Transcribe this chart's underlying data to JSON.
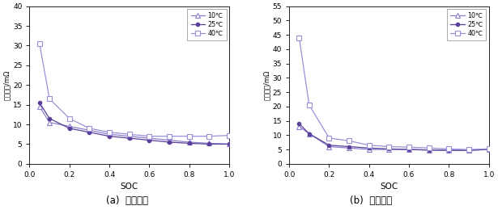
{
  "soc": [
    0.05,
    0.1,
    0.2,
    0.3,
    0.4,
    0.5,
    0.6,
    0.7,
    0.8,
    0.9,
    1.0
  ],
  "ohm_10": [
    14.5,
    10.5,
    9.5,
    8.5,
    7.5,
    7.0,
    6.5,
    6.0,
    5.5,
    5.2,
    5.0
  ],
  "ohm_25": [
    15.5,
    11.5,
    9.0,
    8.0,
    7.0,
    6.5,
    6.0,
    5.5,
    5.2,
    5.0,
    5.0
  ],
  "ohm_40": [
    30.5,
    16.5,
    11.5,
    9.0,
    8.0,
    7.5,
    7.0,
    7.0,
    7.0,
    7.0,
    7.2
  ],
  "pol_10": [
    13.0,
    10.5,
    6.0,
    5.5,
    5.0,
    5.0,
    5.0,
    4.8,
    4.7,
    4.7,
    5.0
  ],
  "pol_25": [
    14.0,
    10.5,
    6.5,
    6.0,
    5.5,
    5.2,
    5.0,
    4.8,
    4.7,
    4.7,
    5.0
  ],
  "pol_40": [
    44.0,
    20.5,
    9.0,
    8.0,
    6.5,
    6.0,
    5.8,
    5.5,
    5.2,
    5.0,
    5.2
  ],
  "c10": "#8B7FCC",
  "c25": "#5B3F9A",
  "c40": "#9B8FD8",
  "ylabel_left": "欧姆内阻/mΩ",
  "ylabel_right": "极化内阻/mΩ",
  "xlabel": "SOC",
  "label_10": "10℃",
  "label_25": "25℃",
  "label_40": "40℃",
  "caption_a": "(a)  欧姆内阻",
  "caption_b": "(b)  极化内阻",
  "ylim_left": [
    0,
    40
  ],
  "ylim_right": [
    0,
    55
  ],
  "yticks_left": [
    0,
    5,
    10,
    15,
    20,
    25,
    30,
    35,
    40
  ],
  "yticks_right": [
    0,
    5,
    10,
    15,
    20,
    25,
    30,
    35,
    40,
    45,
    50,
    55
  ],
  "xticks": [
    0,
    0.2,
    0.4,
    0.6,
    0.8,
    1.0
  ],
  "xlim": [
    0,
    1.0
  ]
}
